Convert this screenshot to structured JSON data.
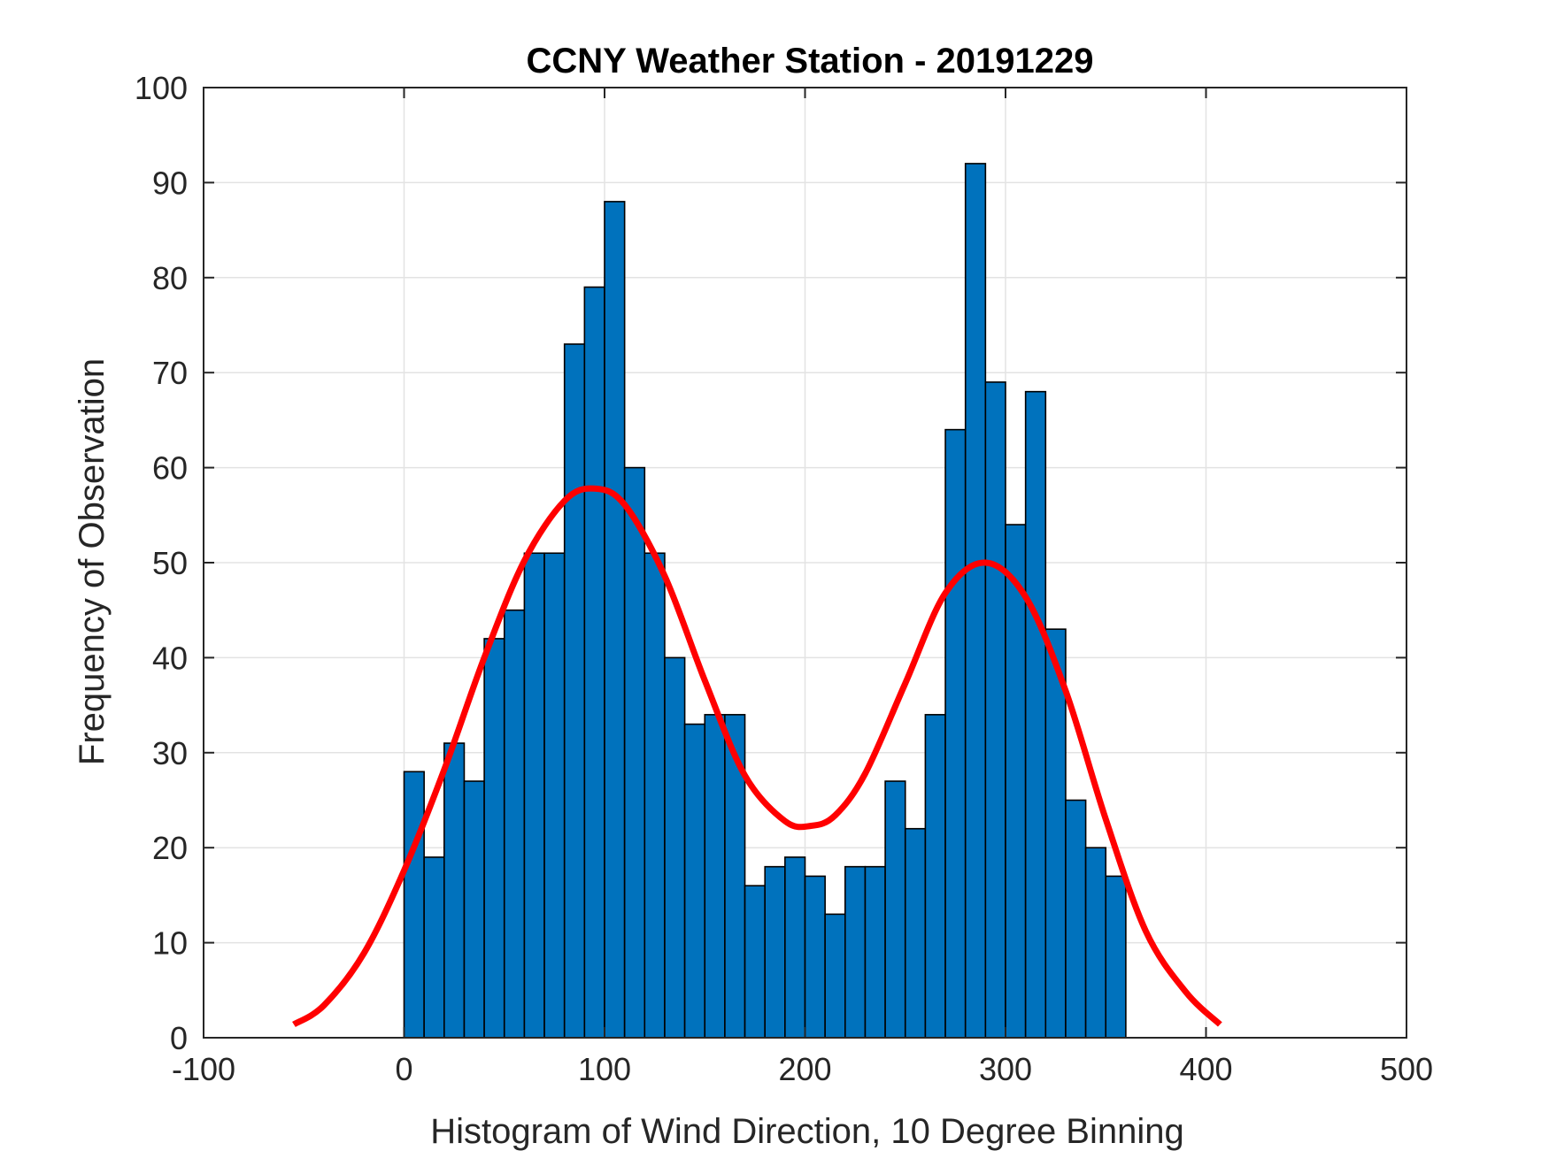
{
  "chart_data": {
    "type": "bar",
    "title": "CCNY Weather Station - 20191229",
    "xlabel": "Histogram of Wind Direction, 10 Degree Binning",
    "ylabel": "Frequency of Observation",
    "xlim": [
      -100,
      500
    ],
    "ylim": [
      0,
      100
    ],
    "x_ticks": [
      -100,
      0,
      100,
      200,
      300,
      400,
      500
    ],
    "y_ticks": [
      0,
      10,
      20,
      30,
      40,
      50,
      60,
      70,
      80,
      90,
      100
    ],
    "grid": true,
    "bin_width": 10,
    "bin_edges": [
      0,
      10,
      20,
      30,
      40,
      50,
      60,
      70,
      80,
      90,
      100,
      110,
      120,
      130,
      140,
      150,
      160,
      170,
      180,
      190,
      200,
      210,
      220,
      230,
      240,
      250,
      260,
      270,
      280,
      290,
      300,
      310,
      320,
      330,
      340,
      350
    ],
    "values": [
      28,
      19,
      31,
      27,
      42,
      45,
      51,
      51,
      73,
      79,
      88,
      60,
      51,
      40,
      33,
      34,
      34,
      16,
      18,
      19,
      17,
      13,
      18,
      18,
      27,
      22,
      34,
      64,
      92,
      69,
      54,
      68,
      43,
      25,
      20,
      17
    ],
    "bar_color": "#0072BD",
    "bar_edge_color": "#000000",
    "fit_curve": {
      "type": "line",
      "color": "#FF0000",
      "x": [
        -55,
        -40,
        -20,
        0,
        20,
        40,
        60,
        80,
        95,
        110,
        130,
        150,
        170,
        190,
        203,
        215,
        230,
        250,
        270,
        290,
        310,
        330,
        350,
        370,
        390,
        407
      ],
      "y": [
        1.4,
        3.4,
        8.9,
        17.6,
        28.2,
        40.0,
        50.2,
        56.5,
        57.8,
        56.1,
        48.6,
        37.6,
        27.6,
        22.8,
        22.3,
        23.4,
        27.8,
        37.3,
        46.8,
        50.0,
        46.4,
        36.5,
        23.0,
        11.2,
        4.8,
        1.4
      ]
    }
  }
}
